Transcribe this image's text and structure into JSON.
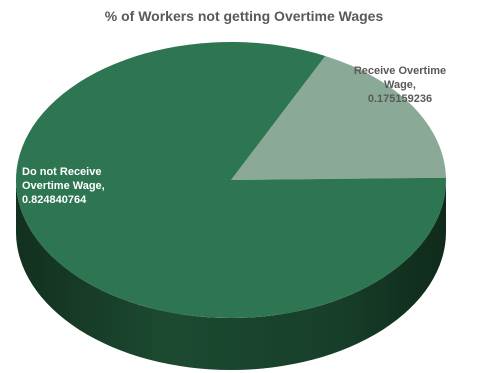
{
  "chart_data": {
    "type": "pie",
    "style": "3d",
    "title": "% of Workers not getting Overtime Wages",
    "slices": [
      {
        "name": "Receive Overtime Wage",
        "label_lines": [
          "Receive Overtime",
          "Wage,",
          "0.175159236"
        ],
        "value": 0.175159236,
        "color": "#8aaa97"
      },
      {
        "name": "Do not Receive Overtime Wage",
        "label_lines": [
          "Do not Receive",
          "Overtime Wage,",
          "0.824840764"
        ],
        "value": 0.824840764,
        "color": "#2e7552"
      }
    ],
    "legend": "none"
  }
}
